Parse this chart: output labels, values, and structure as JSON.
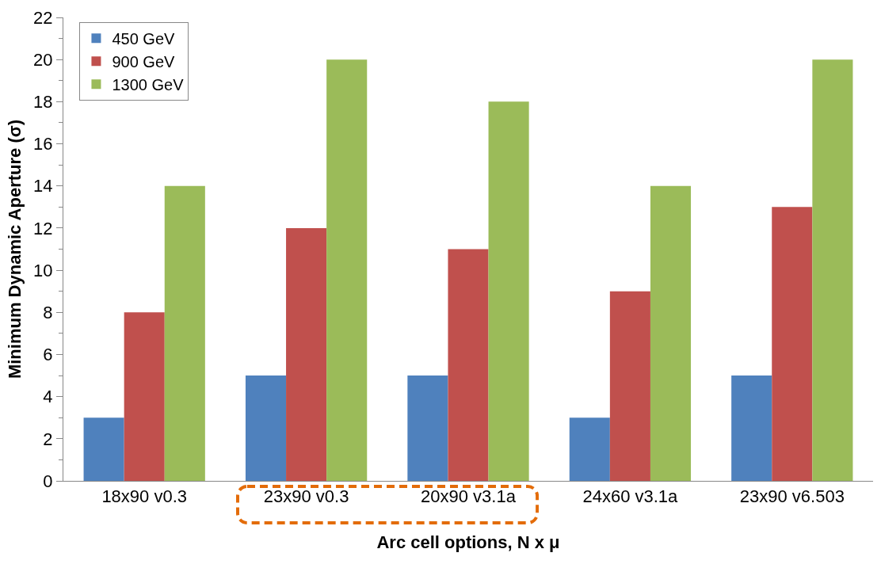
{
  "chart_data": {
    "type": "bar",
    "xlabel": "Arc cell options, N x μ",
    "ylabel": "Minimum Dynamic Aperture (σ)",
    "categories": [
      "18x90 v0.3",
      "23x90 v0.3",
      "20x90 v3.1a",
      "24x60 v3.1a",
      "23x90 v6.503"
    ],
    "series": [
      {
        "name": "450 GeV",
        "color": "#4f81bd",
        "values": [
          3,
          5,
          5,
          3,
          5
        ]
      },
      {
        "name": "900 GeV",
        "color": "#c0504d",
        "values": [
          8,
          12,
          11,
          9,
          13
        ]
      },
      {
        "name": "1300 GeV",
        "color": "#9bbb59",
        "values": [
          14,
          20,
          18,
          14,
          20
        ]
      }
    ],
    "ylim": [
      0,
      22
    ],
    "yticks": [
      0,
      2,
      4,
      6,
      8,
      10,
      12,
      14,
      16,
      18,
      20,
      22
    ],
    "grid": false,
    "legend": "top left"
  }
}
